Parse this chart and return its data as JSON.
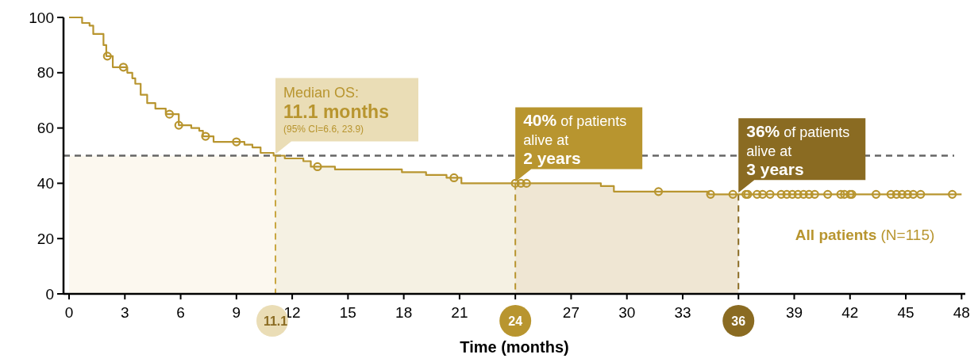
{
  "chart_data": {
    "type": "step",
    "xlabel": "Time (months)",
    "xlim": [
      -0.3,
      48.2
    ],
    "xticks": [
      0,
      3,
      6,
      9,
      12,
      15,
      18,
      21,
      {
        "value": 24,
        "label": null
      },
      27,
      30,
      33,
      {
        "value": 36,
        "label": null
      },
      39,
      42,
      45,
      48
    ],
    "ylim": [
      0,
      100
    ],
    "yticks": [
      0,
      20,
      40,
      60,
      80,
      100
    ],
    "series": [
      {
        "name": "All patients (N=115)",
        "color": "#b8952f",
        "marker": "none",
        "line_style": "solid",
        "x": [
          0,
          0.7,
          1.1,
          1.3,
          1.85,
          2.0,
          2.35,
          3.13,
          3.4,
          3.56,
          3.85,
          4.2,
          4.64,
          5.2,
          5.9,
          6.57,
          7.0,
          7.2,
          7.77,
          9.43,
          9.86,
          10.3,
          11.0,
          11.6,
          12.6,
          13.0,
          14.3,
          17.9,
          19.2,
          20.3,
          21.1,
          28.6,
          29.3,
          34.4,
          48
        ],
        "values": [
          100,
          98,
          97,
          94,
          90,
          86,
          82,
          80,
          78,
          76,
          72,
          69,
          67,
          65,
          61,
          60,
          59,
          57,
          55,
          54,
          53,
          51,
          50,
          49,
          48,
          46,
          45,
          44,
          43,
          42,
          40,
          39,
          37,
          36,
          36
        ]
      },
      {
        "type": "scatter",
        "color": "#b8952f",
        "marker": "circle",
        "x": [
          2.06,
          2.92,
          5.4,
          5.9,
          7.34,
          9.0,
          13.36,
          20.7,
          24.0,
          24.3,
          24.6,
          31.7,
          34.5,
          35.7,
          36.4,
          36.5,
          37.0,
          37.3,
          37.7,
          38.3,
          38.6,
          38.9,
          39.2,
          39.5,
          39.8,
          40.1,
          40.8,
          41.5,
          41.7,
          42.0,
          42.1,
          43.4,
          44.2,
          44.5,
          44.8,
          45.1,
          45.4,
          45.8,
          47.5
        ],
        "values": [
          86,
          82,
          65,
          61,
          57,
          55,
          46,
          42,
          40,
          40,
          40,
          37,
          36,
          36,
          36,
          36,
          36,
          36,
          36,
          36,
          36,
          36,
          36,
          36,
          36,
          36,
          36,
          36,
          36,
          36,
          36,
          36,
          36,
          36,
          36,
          36,
          36,
          36,
          36
        ]
      }
    ],
    "ref_lines": [
      {
        "axis": "y",
        "value": 50,
        "color": "#666666",
        "line_style": "dashed"
      },
      {
        "axis": "x",
        "value": 11.1,
        "label": "11.1",
        "color": "#c9a640",
        "line_style": "dashed"
      },
      {
        "axis": "x",
        "value": 24,
        "label": "24",
        "color": "#b8952f",
        "line_style": "dashed"
      },
      {
        "axis": "x",
        "value": 36,
        "label": "36",
        "color": "#8a6b22",
        "line_style": "dashed"
      }
    ],
    "bands": [
      {
        "axis": "x",
        "from": 0,
        "to": 11.1,
        "color": "#fcf8ef"
      },
      {
        "axis": "x",
        "from": 11.1,
        "to": 24,
        "color": "#f5f1e3"
      },
      {
        "axis": "x",
        "from": 24,
        "to": 36,
        "color": "#efe6d3"
      }
    ],
    "annotations": [
      {
        "text": "Median OS:\n11.1 months\n(95% CI=6.6, 23.9)",
        "x": 11.1,
        "y": 50
      },
      {
        "text": "40% of patients\nalive at\n2 years",
        "x": 24,
        "y": 40
      },
      {
        "text": "36% of patients\nalive at\n3 years",
        "x": 36,
        "y": 36
      }
    ]
  }
}
